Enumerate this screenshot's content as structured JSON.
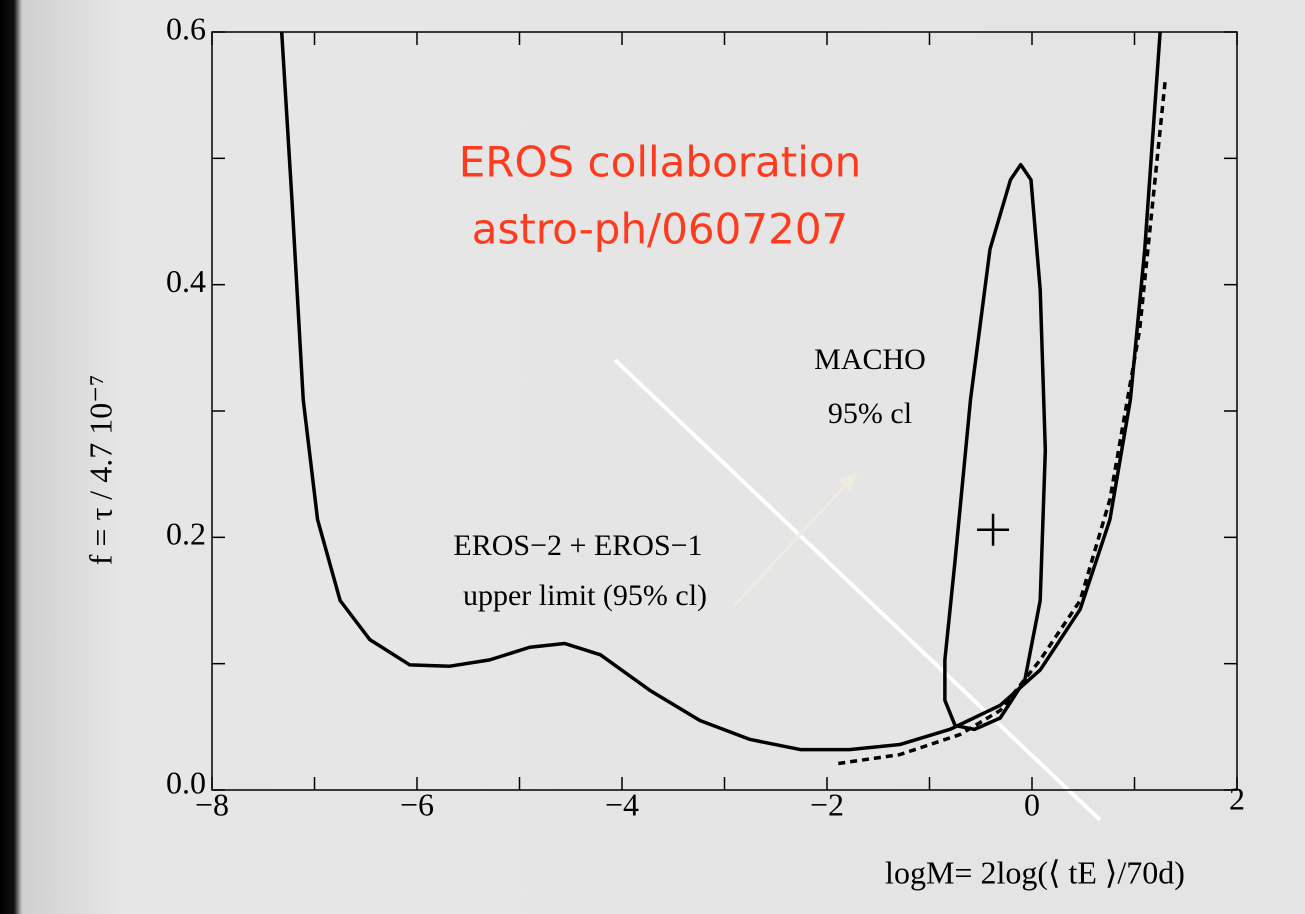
{
  "chart_data": {
    "type": "line",
    "annotations": [
      "EROS collaboration",
      "astro-ph/0607207",
      "MACHO",
      "95% cl",
      "EROS−2 + EROS−1",
      "upper limit (95% cl)"
    ],
    "xlabel": "logM= 2log(⟨ tE ⟩/70d)",
    "ylabel": "f = τ / 4.7 10⁻⁷",
    "xlim": [
      -8,
      2
    ],
    "ylim": [
      0,
      0.6
    ],
    "xticks": [
      {
        "value": -8,
        "label": "−8"
      },
      {
        "value": -6,
        "label": "−6"
      },
      {
        "value": -4,
        "label": "−4"
      },
      {
        "value": -2,
        "label": "−2"
      },
      0,
      2
    ],
    "yticks": [
      {
        "value": 0,
        "label": "0.0"
      },
      0.2,
      0.4,
      0.6
    ],
    "series": [
      {
        "color": "#000000",
        "dashed": false,
        "closed": false,
        "x": [
          -7.32,
          -7.22,
          -7.11,
          -6.97,
          -6.75,
          -6.46,
          -6.07,
          -5.68,
          -5.29,
          -4.9,
          -4.56,
          -4.21,
          -3.73,
          -3.24,
          -2.75,
          -2.26,
          -1.78,
          -1.29,
          -0.8,
          -0.31,
          0.08,
          0.47,
          0.76,
          0.96,
          1.1,
          1.25
        ],
        "values": [
          0.6,
          0.467,
          0.309,
          0.214,
          0.15,
          0.119,
          0.099,
          0.098,
          0.103,
          0.113,
          0.116,
          0.107,
          0.079,
          0.055,
          0.04,
          0.032,
          0.032,
          0.036,
          0.048,
          0.067,
          0.095,
          0.143,
          0.214,
          0.309,
          0.428,
          0.6
        ]
      },
      {
        "color": "#000000",
        "dashed": true,
        "closed": false,
        "x": [
          -1.89,
          -1.29,
          -0.7,
          -0.31,
          0.08,
          0.47,
          0.76,
          1.05,
          1.3
        ],
        "values": [
          0.021,
          0.028,
          0.044,
          0.063,
          0.103,
          0.15,
          0.23,
          0.364,
          0.562
        ]
      },
      {
        "color": "#000000",
        "dashed": false,
        "closed": true,
        "x": [
          -0.85,
          -0.75,
          -0.6,
          -0.41,
          -0.21,
          -0.11,
          -0.01,
          0.08,
          0.13,
          0.08,
          -0.07,
          -0.31,
          -0.56,
          -0.75,
          -0.85
        ],
        "values": [
          0.103,
          0.182,
          0.309,
          0.428,
          0.483,
          0.495,
          0.483,
          0.396,
          0.269,
          0.15,
          0.087,
          0.057,
          0.048,
          0.051,
          0.071
        ]
      }
    ],
    "marker": {
      "x": -0.38,
      "y": 0.206,
      "color": "#000000"
    }
  }
}
